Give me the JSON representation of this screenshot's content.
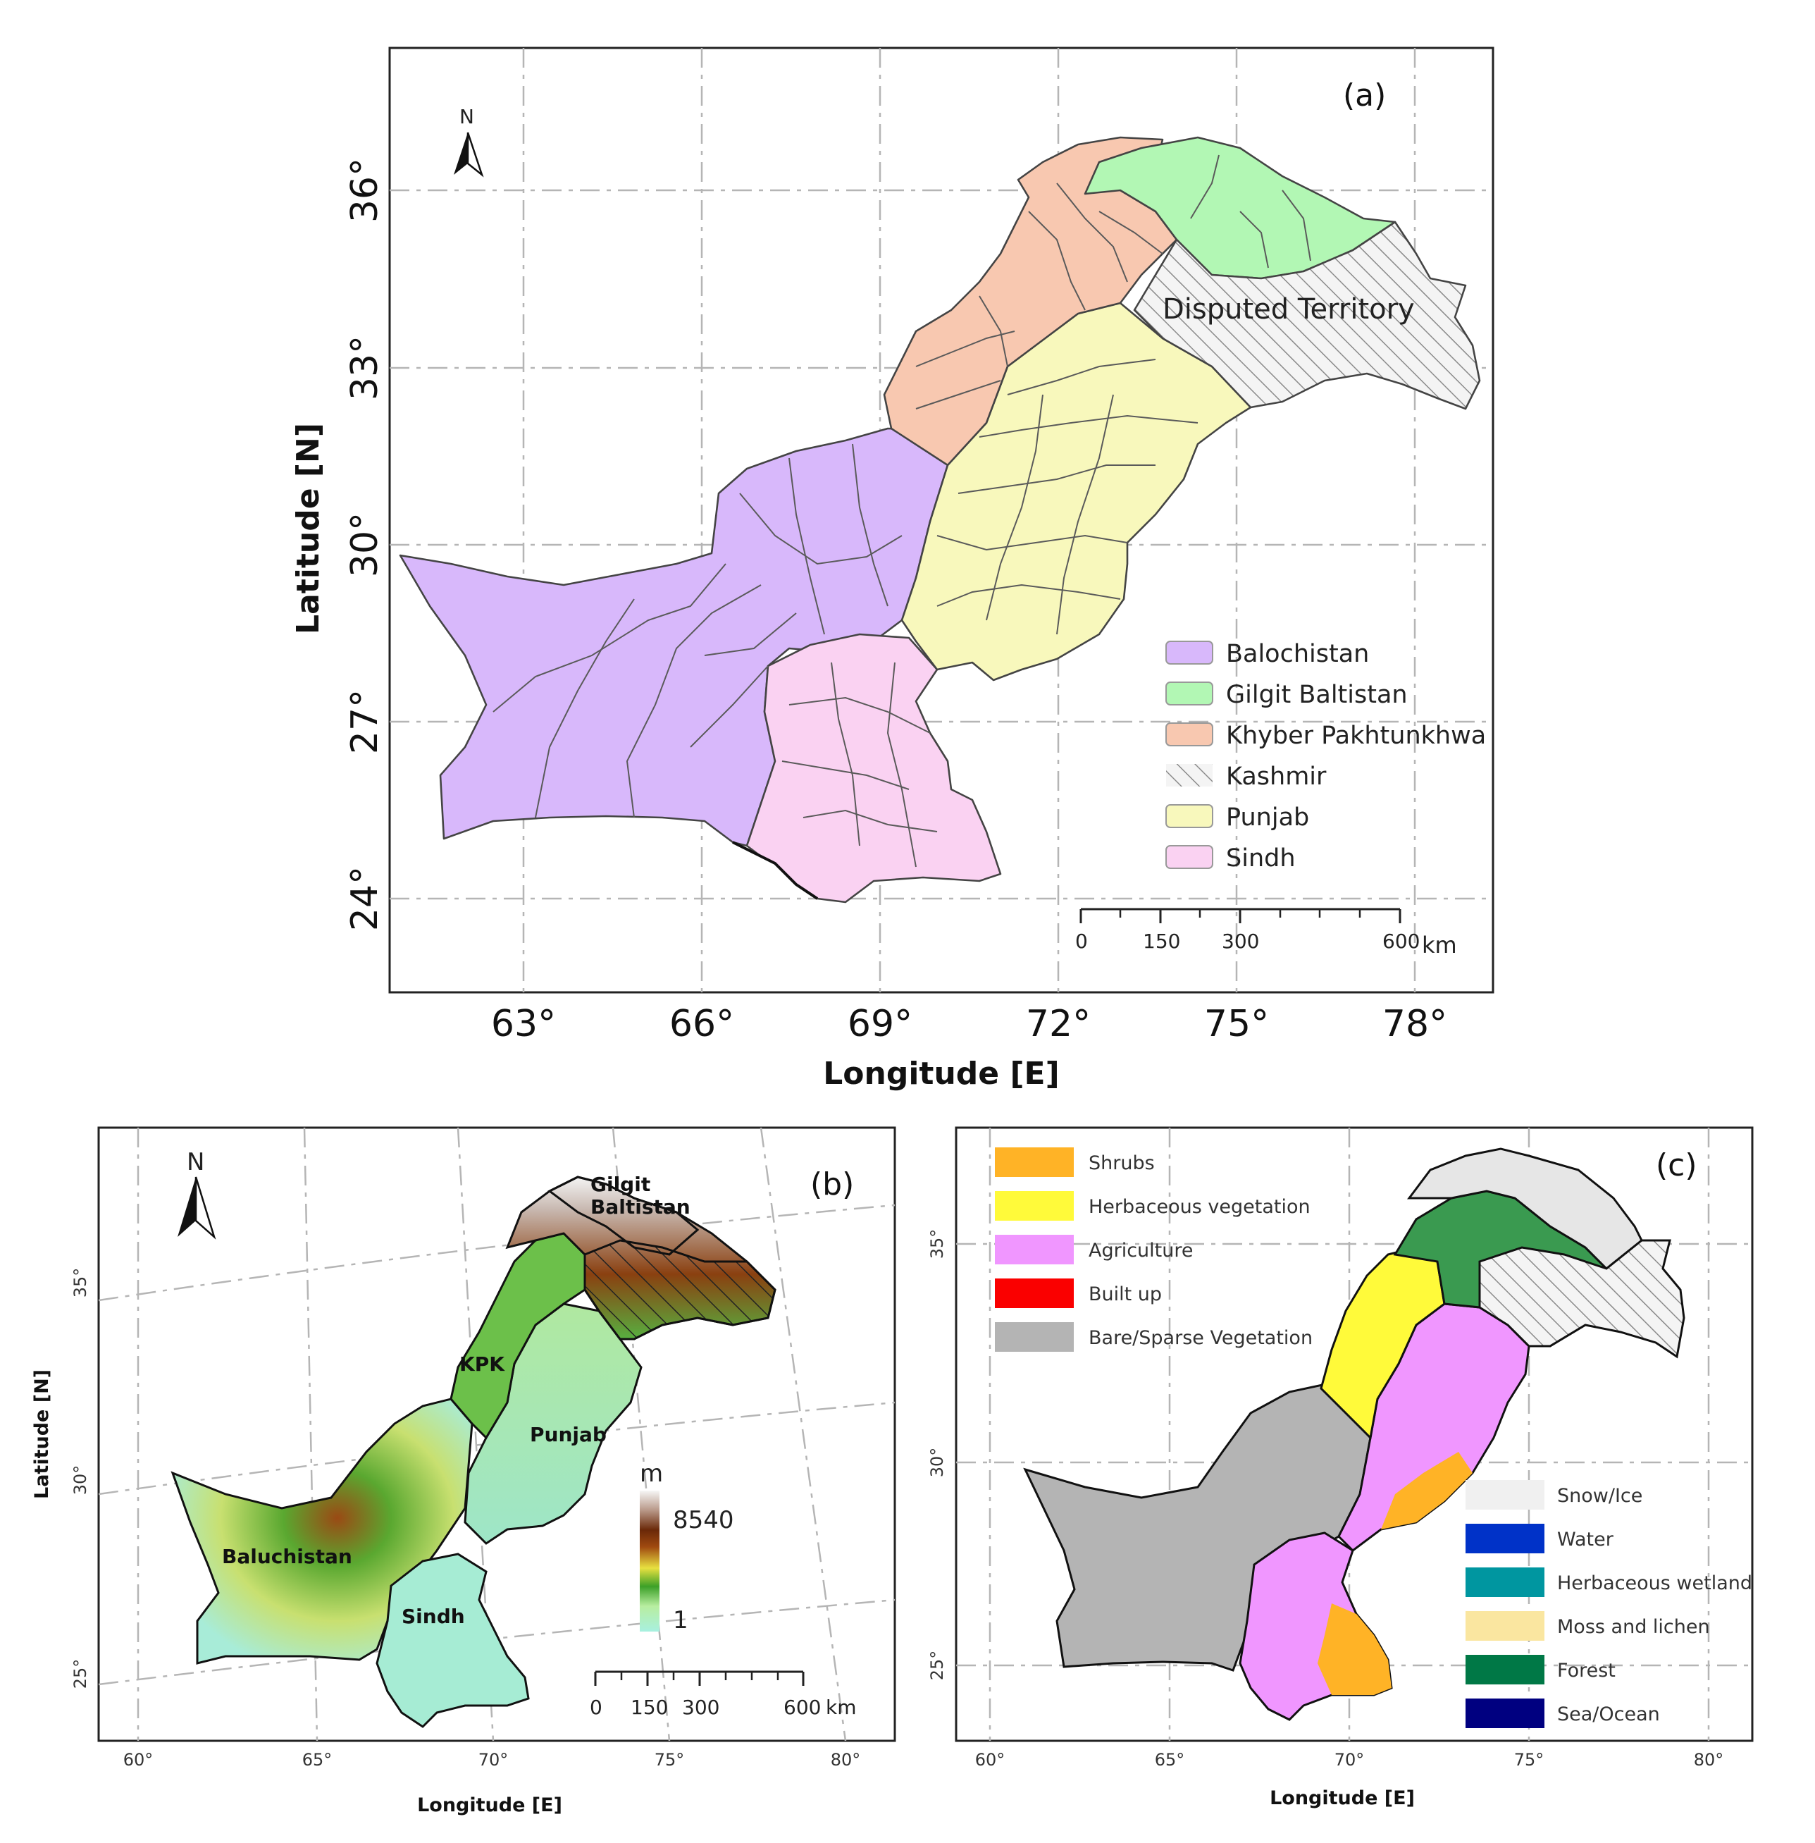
{
  "panel_a": {
    "letter": "(a)",
    "north": "N",
    "xlabel": "Longitude [E]",
    "ylabel": "Latitude [N]",
    "xticks": [
      "63°",
      "66°",
      "69°",
      "72°",
      "75°",
      "78°"
    ],
    "yticks": [
      "36°",
      "33°",
      "30°",
      "27°",
      "24°"
    ],
    "disputed_label": "Disputed Territory",
    "legend": [
      {
        "label": "Balochistan",
        "color": "#d8b8fb"
      },
      {
        "label": "Gilgit Baltistan",
        "color": "#b2f7b4"
      },
      {
        "label": "Khyber Pakhtunkhwa",
        "color": "#f8c8b0"
      },
      {
        "label": "Kashmir",
        "color": "hatch"
      },
      {
        "label": "Punjab",
        "color": "#f8f8bc"
      },
      {
        "label": "Sindh",
        "color": "#fad2f2"
      }
    ],
    "scale": {
      "ticks": [
        "0",
        "150",
        "300",
        "600"
      ],
      "unit": "km"
    }
  },
  "panel_b": {
    "letter": "(b)",
    "north": "N",
    "xlabel": "Longitude [E]",
    "ylabel": "Latitude [N]",
    "xticks": [
      "60°",
      "65°",
      "70°",
      "75°",
      "80°"
    ],
    "yticks": [
      "35°",
      "30°",
      "25°"
    ],
    "labels": {
      "gilgit_1": "Gilgit",
      "gilgit_2": "Baltistan",
      "kpk": "KPK",
      "punjab": "Punjab",
      "baluchistan": "Baluchistan",
      "sindh": "Sindh"
    },
    "colorbar": {
      "unit": "m",
      "max": "8540",
      "min": "1"
    },
    "scale": {
      "ticks": [
        "0",
        "150",
        "300",
        "600"
      ],
      "unit": "km"
    }
  },
  "panel_c": {
    "letter": "(c)",
    "xlabel": "Longitude [E]",
    "ylabel": "Latitude [N]",
    "xticks": [
      "60°",
      "65°",
      "70°",
      "75°",
      "80°"
    ],
    "yticks": [
      "35°",
      "30°",
      "25°"
    ],
    "legend_top": [
      {
        "label": "Shrubs",
        "color": "#ffb326"
      },
      {
        "label": "Herbaceous vegetation",
        "color": "#fffa3a"
      },
      {
        "label": "Agriculture",
        "color": "#f096ff"
      },
      {
        "label": "Built up",
        "color": "#fa0000"
      },
      {
        "label": "Bare/Sparse Vegetation",
        "color": "#b4b4b4"
      }
    ],
    "legend_bottom": [
      {
        "label": "Snow/Ice",
        "color": "#f0f0f0"
      },
      {
        "label": "Water",
        "color": "#0032c8"
      },
      {
        "label": "Herbaceous wetland",
        "color": "#0096a0"
      },
      {
        "label": "Moss and lichen",
        "color": "#fae6a0"
      },
      {
        "label": "Forest",
        "color": "#007846"
      },
      {
        "label": "Sea/Ocean",
        "color": "#000080"
      }
    ]
  }
}
